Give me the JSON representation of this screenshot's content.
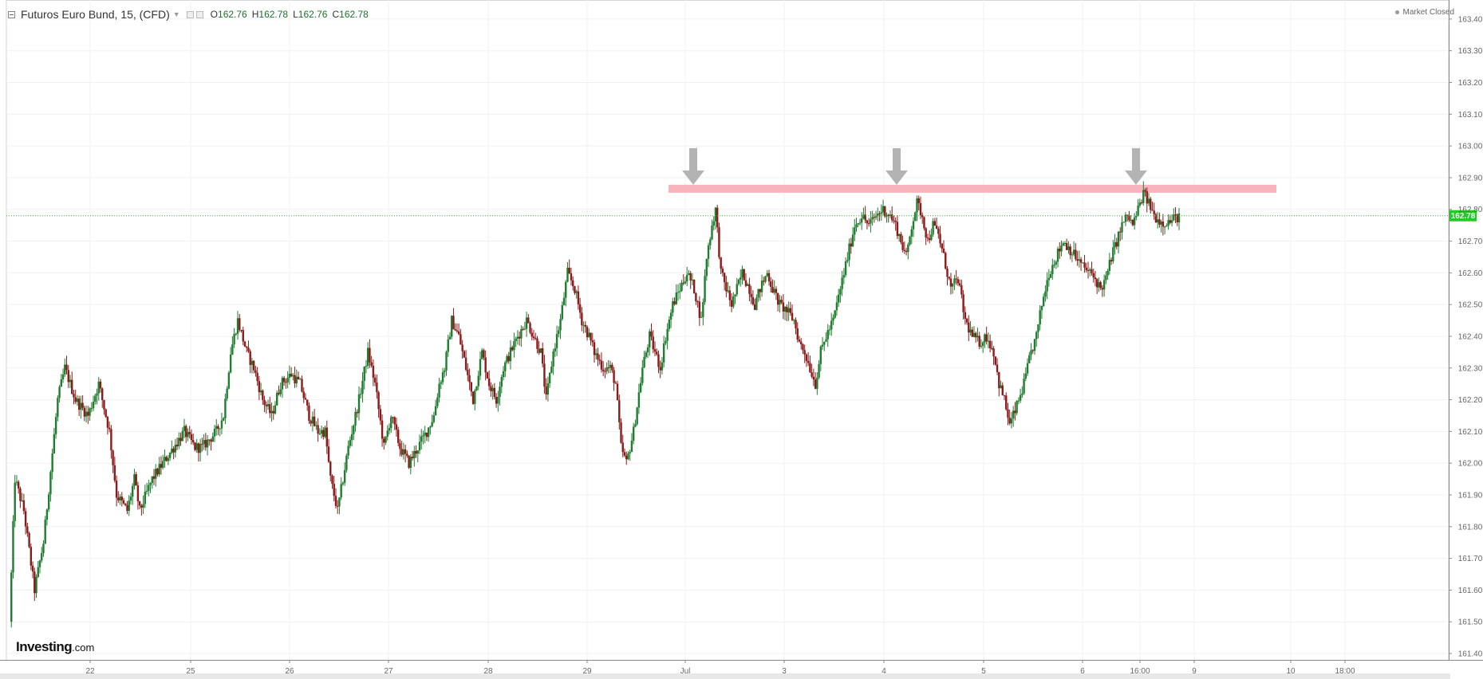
{
  "header": {
    "symbol": "Futuros Euro Bund, 15, (CFD)",
    "open_label": "O",
    "open": "162.76",
    "high_label": "H",
    "high": "162.78",
    "low_label": "L",
    "low": "162.76",
    "close_label": "C",
    "close": "162.78"
  },
  "market_status": "Market Closed",
  "logo": {
    "name": "Investing",
    "suffix": ".com"
  },
  "colors": {
    "up": "#1e7d2e",
    "down": "#8b1a1a",
    "resistance": "#f7b4bc",
    "arrow": "#b3b3b3",
    "last_price_line": "#2ec92e",
    "last_price_tag": "#1fcc1f"
  },
  "chart_data": {
    "type": "candlestick",
    "ylim": [
      161.38,
      163.46
    ],
    "yticks": [
      "163.40",
      "163.30",
      "163.20",
      "163.10",
      "163.00",
      "162.90",
      "162.80",
      "162.70",
      "162.60",
      "162.50",
      "162.40",
      "162.30",
      "162.20",
      "162.10",
      "162.00",
      "161.90",
      "161.80",
      "161.70",
      "161.60",
      "161.50",
      "161.40"
    ],
    "x_ticks": [
      "22",
      "25",
      "26",
      "27",
      "28",
      "29",
      "Jul",
      "3",
      "4",
      "5",
      "6",
      "16:00",
      "9",
      "10",
      "18:00"
    ],
    "last_price": "162.78",
    "resistance_level": 162.865,
    "price_path": [
      [
        0,
        161.5
      ],
      [
        3,
        161.95
      ],
      [
        8,
        161.85
      ],
      [
        14,
        161.6
      ],
      [
        19,
        161.75
      ],
      [
        27,
        162.2
      ],
      [
        31,
        162.3
      ],
      [
        37,
        162.2
      ],
      [
        44,
        162.15
      ],
      [
        50,
        162.25
      ],
      [
        56,
        162.1
      ],
      [
        60,
        161.9
      ],
      [
        66,
        161.85
      ],
      [
        70,
        161.95
      ],
      [
        73,
        161.85
      ],
      [
        80,
        161.95
      ],
      [
        86,
        162.0
      ],
      [
        92,
        162.05
      ],
      [
        98,
        162.1
      ],
      [
        104,
        162.05
      ],
      [
        108,
        162.05
      ],
      [
        116,
        162.1
      ],
      [
        120,
        162.15
      ],
      [
        124,
        162.35
      ],
      [
        128,
        162.45
      ],
      [
        133,
        162.35
      ],
      [
        137,
        162.3
      ],
      [
        142,
        162.2
      ],
      [
        147,
        162.15
      ],
      [
        152,
        162.25
      ],
      [
        158,
        162.28
      ],
      [
        163,
        162.25
      ],
      [
        168,
        162.15
      ],
      [
        173,
        162.1
      ],
      [
        177,
        162.1
      ],
      [
        180,
        161.95
      ],
      [
        184,
        161.85
      ],
      [
        190,
        162.05
      ],
      [
        196,
        162.2
      ],
      [
        201,
        162.35
      ],
      [
        205,
        162.25
      ],
      [
        210,
        162.05
      ],
      [
        214,
        162.15
      ],
      [
        219,
        162.05
      ],
      [
        224,
        162.0
      ],
      [
        229,
        162.05
      ],
      [
        234,
        162.1
      ],
      [
        238,
        162.15
      ],
      [
        241,
        162.25
      ],
      [
        244,
        162.3
      ],
      [
        248,
        162.45
      ],
      [
        252,
        162.4
      ],
      [
        256,
        162.3
      ],
      [
        260,
        162.2
      ],
      [
        265,
        162.35
      ],
      [
        269,
        162.25
      ],
      [
        273,
        162.2
      ],
      [
        277,
        162.3
      ],
      [
        281,
        162.35
      ],
      [
        285,
        162.4
      ],
      [
        290,
        162.45
      ],
      [
        294,
        162.4
      ],
      [
        298,
        162.35
      ],
      [
        301,
        162.2
      ],
      [
        305,
        162.35
      ],
      [
        309,
        162.45
      ],
      [
        313,
        162.6
      ],
      [
        317,
        162.55
      ],
      [
        321,
        162.45
      ],
      [
        325,
        162.4
      ],
      [
        328,
        162.35
      ],
      [
        333,
        162.3
      ],
      [
        337,
        162.3
      ],
      [
        340,
        162.25
      ],
      [
        343,
        162.05
      ],
      [
        346,
        162.0
      ],
      [
        350,
        162.1
      ],
      [
        355,
        162.3
      ],
      [
        359,
        162.4
      ],
      [
        362,
        162.35
      ],
      [
        365,
        162.3
      ],
      [
        368,
        162.4
      ],
      [
        372,
        162.5
      ],
      [
        376,
        162.55
      ],
      [
        380,
        162.6
      ],
      [
        384,
        162.55
      ],
      [
        388,
        162.45
      ],
      [
        391,
        162.65
      ],
      [
        394,
        162.75
      ],
      [
        396,
        162.8
      ],
      [
        399,
        162.6
      ],
      [
        402,
        162.55
      ],
      [
        405,
        162.5
      ],
      [
        408,
        162.55
      ],
      [
        411,
        162.6
      ],
      [
        415,
        162.55
      ],
      [
        418,
        162.5
      ],
      [
        421,
        162.55
      ],
      [
        425,
        162.6
      ],
      [
        428,
        162.55
      ],
      [
        432,
        162.5
      ],
      [
        436,
        162.48
      ],
      [
        440,
        162.45
      ],
      [
        443,
        162.38
      ],
      [
        446,
        162.35
      ],
      [
        449,
        162.3
      ],
      [
        452,
        162.25
      ],
      [
        455,
        162.35
      ],
      [
        458,
        162.4
      ],
      [
        462,
        162.45
      ],
      [
        466,
        162.55
      ],
      [
        470,
        162.65
      ],
      [
        474,
        162.75
      ],
      [
        478,
        162.78
      ],
      [
        482,
        162.75
      ],
      [
        486,
        162.78
      ],
      [
        490,
        162.8
      ],
      [
        494,
        162.78
      ],
      [
        497,
        162.75
      ],
      [
        500,
        162.7
      ],
      [
        503,
        162.65
      ],
      [
        506,
        162.75
      ],
      [
        509,
        162.82
      ],
      [
        512,
        162.78
      ],
      [
        515,
        162.7
      ],
      [
        518,
        162.75
      ],
      [
        521,
        162.72
      ],
      [
        524,
        162.65
      ],
      [
        528,
        162.55
      ],
      [
        532,
        162.58
      ],
      [
        536,
        162.45
      ],
      [
        540,
        162.4
      ],
      [
        544,
        162.38
      ],
      [
        548,
        162.4
      ],
      [
        552,
        162.35
      ],
      [
        555,
        162.25
      ],
      [
        558,
        162.2
      ],
      [
        561,
        162.12
      ],
      [
        565,
        162.18
      ],
      [
        569,
        162.25
      ],
      [
        573,
        162.35
      ],
      [
        576,
        162.4
      ],
      [
        579,
        162.5
      ],
      [
        583,
        162.6
      ],
      [
        587,
        162.65
      ],
      [
        591,
        162.7
      ],
      [
        594,
        162.68
      ],
      [
        598,
        162.65
      ],
      [
        602,
        162.62
      ],
      [
        606,
        162.6
      ],
      [
        609,
        162.58
      ],
      [
        612,
        162.55
      ],
      [
        615,
        162.58
      ],
      [
        618,
        162.65
      ],
      [
        621,
        162.7
      ],
      [
        624,
        162.75
      ],
      [
        627,
        162.78
      ],
      [
        630,
        162.75
      ],
      [
        633,
        162.8
      ],
      [
        636,
        162.85
      ],
      [
        639,
        162.82
      ],
      [
        642,
        162.78
      ],
      [
        646,
        162.76
      ],
      [
        650,
        162.76
      ],
      [
        653,
        162.77
      ],
      [
        656,
        162.78
      ]
    ]
  }
}
